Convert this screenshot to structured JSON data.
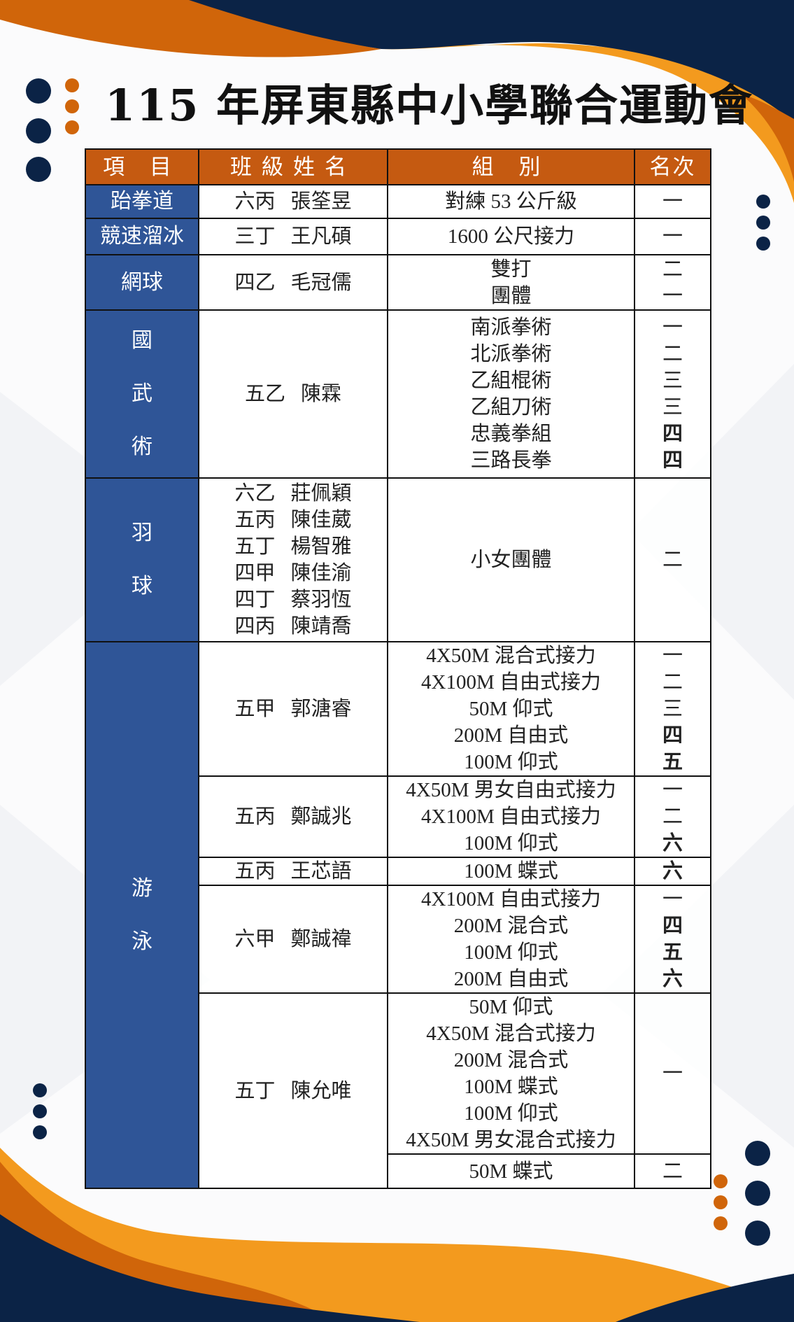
{
  "title": "115 年屏東縣中小學聯合運動會",
  "colors": {
    "header_bg": "#C55A11",
    "event_bg": "#2F5597",
    "navy": "#0B2346",
    "orange": "#D0650A",
    "light_orange": "#F39A1E"
  },
  "table": {
    "headers": [
      "項 目",
      "班級姓名",
      "組 別",
      "名次"
    ],
    "sections": [
      {
        "event": "跆拳道",
        "entries": [
          {
            "students": [
              {
                "class": "六丙",
                "name": "張筌昱"
              }
            ],
            "results": [
              {
                "groups": [
                  "對練 53 公斤級"
                ],
                "ranks": [
                  "一"
                ]
              }
            ]
          }
        ]
      },
      {
        "event": "競速溜冰",
        "entries": [
          {
            "students": [
              {
                "class": "三丁",
                "name": "王凡碩"
              }
            ],
            "results": [
              {
                "groups": [
                  "1600 公尺接力"
                ],
                "ranks": [
                  "一"
                ]
              }
            ]
          }
        ]
      },
      {
        "event": "網球",
        "entries": [
          {
            "students": [
              {
                "class": "四乙",
                "name": "毛冠儒"
              }
            ],
            "results": [
              {
                "groups": [
                  "雙打",
                  "團體"
                ],
                "ranks": [
                  "二",
                  "一"
                ]
              }
            ]
          }
        ]
      },
      {
        "event": "國武術",
        "entries": [
          {
            "students": [
              {
                "class": "五乙",
                "name": "陳霖"
              }
            ],
            "results": [
              {
                "groups": [
                  "南派拳術",
                  "北派拳術",
                  "乙組棍術",
                  "乙組刀術",
                  "忠義拳組",
                  "三路長拳"
                ],
                "ranks": [
                  "一",
                  "二",
                  "三",
                  "三",
                  "四",
                  "四"
                ]
              }
            ]
          }
        ]
      },
      {
        "event": "羽球",
        "entries": [
          {
            "students": [
              {
                "class": "六乙",
                "name": "莊佩穎"
              },
              {
                "class": "五丙",
                "name": "陳佳葳"
              },
              {
                "class": "五丁",
                "name": "楊智雅"
              },
              {
                "class": "四甲",
                "name": "陳佳渝"
              },
              {
                "class": "四丁",
                "name": "蔡羽恆"
              },
              {
                "class": "四丙",
                "name": "陳靖喬"
              }
            ],
            "results": [
              {
                "groups": [
                  "小女團體"
                ],
                "ranks": [
                  "二"
                ]
              }
            ]
          }
        ]
      },
      {
        "event": "游泳",
        "entries": [
          {
            "students": [
              {
                "class": "五甲",
                "name": "郭溏睿"
              }
            ],
            "results": [
              {
                "groups": [
                  "4X50M 混合式接力",
                  "4X100M 自由式接力",
                  "50M 仰式",
                  "200M 自由式",
                  "100M 仰式"
                ],
                "ranks": [
                  "一",
                  "二",
                  "三",
                  "四",
                  "五"
                ]
              }
            ]
          },
          {
            "students": [
              {
                "class": "五丙",
                "name": "鄭誠兆"
              }
            ],
            "results": [
              {
                "groups": [
                  "4X50M 男女自由式接力",
                  "4X100M 自由式接力",
                  "100M 仰式"
                ],
                "ranks": [
                  "一",
                  "二",
                  "六"
                ]
              }
            ]
          },
          {
            "students": [
              {
                "class": "五丙",
                "name": "王芯語"
              }
            ],
            "results": [
              {
                "groups": [
                  "100M 蝶式"
                ],
                "ranks": [
                  "六"
                ]
              }
            ]
          },
          {
            "students": [
              {
                "class": "六甲",
                "name": "鄭誠禕"
              }
            ],
            "results": [
              {
                "groups": [
                  "4X100M 自由式接力",
                  "200M 混合式",
                  "100M 仰式",
                  "200M 自由式"
                ],
                "ranks": [
                  "一",
                  "四",
                  "五",
                  "六"
                ]
              }
            ]
          },
          {
            "students": [
              {
                "class": "五丁",
                "name": "陳允唯"
              }
            ],
            "results": [
              {
                "groups": [
                  "50M 仰式",
                  "4X50M 混合式接力",
                  "200M 混合式",
                  "100M 蝶式",
                  "100M 仰式",
                  "4X50M 男女混合式接力"
                ],
                "ranks": [
                  "一"
                ]
              },
              {
                "groups": [
                  "50M 蝶式"
                ],
                "ranks": [
                  "二"
                ]
              }
            ]
          }
        ]
      }
    ]
  }
}
